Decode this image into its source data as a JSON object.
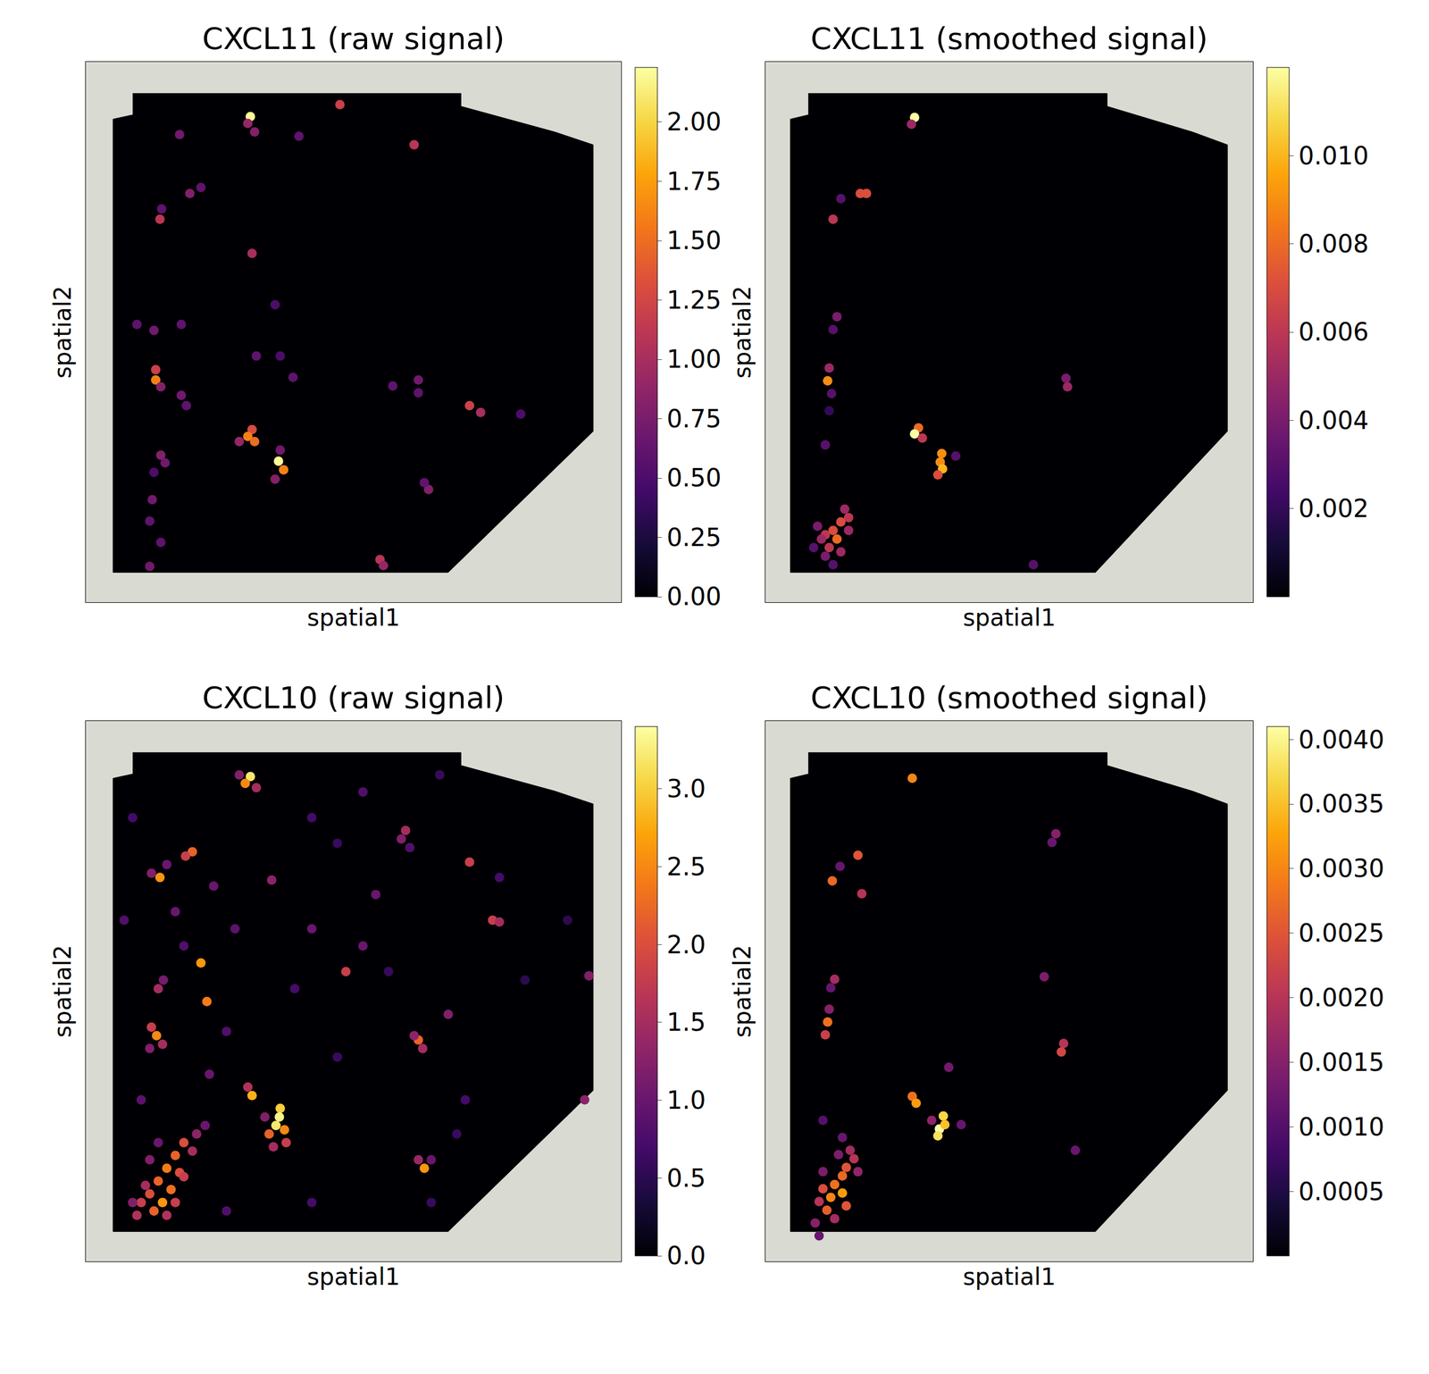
{
  "chart_data": [
    {
      "type": "scatter",
      "title": "CXCL11 (raw signal)",
      "x_label": "spatial1",
      "y_label": "spatial2",
      "xlim": [
        0,
        628
      ],
      "ylim": [
        632,
        0
      ],
      "tick_labels": false,
      "outline": {
        "x": [
          55,
          440,
          440,
          550,
          595,
          595,
          425,
          32,
          32,
          55
        ],
        "y": [
          37,
          37,
          52,
          82,
          97,
          432,
          597,
          597,
          67,
          62
        ]
      },
      "x": [
        193,
        190,
        198,
        298,
        385,
        110,
        250,
        122,
        135,
        87,
        89,
        195,
        222,
        60,
        80,
        112,
        82,
        82,
        88,
        200,
        228,
        243,
        360,
        390,
        390,
        112,
        118,
        450,
        463,
        195,
        190,
        198,
        180,
        228,
        226,
        232,
        222,
        88,
        93,
        80,
        402,
        397,
        78,
        75,
        88,
        75,
        345,
        349,
        510
      ],
      "y": [
        64,
        72,
        82,
        50,
        97,
        85,
        87,
        154,
        147,
        184,
        172,
        224,
        284,
        307,
        314,
        307,
        360,
        372,
        380,
        344,
        344,
        369,
        379,
        372,
        387,
        390,
        402,
        402,
        410,
        430,
        438,
        444,
        444,
        454,
        467,
        477,
        488,
        460,
        469,
        480,
        500,
        492,
        512,
        537,
        562,
        590,
        582,
        589,
        412
      ],
      "values": [
        2.2,
        0.9,
        0.8,
        1.2,
        1.1,
        0.7,
        0.6,
        0.8,
        0.6,
        1.1,
        0.6,
        1.0,
        0.5,
        0.6,
        0.7,
        0.6,
        1.2,
        1.6,
        0.8,
        0.6,
        0.5,
        0.6,
        0.6,
        0.7,
        0.6,
        0.7,
        0.6,
        1.2,
        1.0,
        1.3,
        1.6,
        1.5,
        0.9,
        0.7,
        2.2,
        1.6,
        0.8,
        0.8,
        0.7,
        0.5,
        0.8,
        0.6,
        0.7,
        0.6,
        0.6,
        0.7,
        1.1,
        0.9,
        0.5
      ],
      "colorbar": {
        "range": [
          0,
          2.23
        ],
        "ticks": [
          {
            "value": 0,
            "label": "0.00"
          },
          0.25,
          {
            "value": 0.5,
            "label": "0.50"
          },
          0.75,
          {
            "value": 1,
            "label": "1.00"
          },
          1.25,
          {
            "value": 1.5,
            "label": "1.50"
          },
          1.75,
          {
            "value": 2,
            "label": "2.00"
          }
        ]
      }
    },
    {
      "type": "scatter",
      "title": "CXCL11 (smoothed signal)",
      "x_label": "spatial1",
      "y_label": "spatial2",
      "xlim": [
        0,
        628
      ],
      "ylim": [
        632,
        0
      ],
      "tick_labels": false,
      "outline": {
        "x": [
          55,
          440,
          440,
          550,
          595,
          595,
          425,
          32,
          32,
          55
        ],
        "y": [
          37,
          37,
          52,
          82,
          97,
          432,
          597,
          597,
          67,
          62
        ]
      },
      "x": [
        192,
        188,
        122,
        130,
        87,
        97,
        92,
        87,
        82,
        80,
        85,
        387,
        389,
        197,
        192,
        202,
        227,
        225,
        228,
        222,
        245,
        82,
        77,
        102,
        107,
        97,
        87,
        77,
        92,
        82,
        72,
        97,
        77,
        67,
        107,
        62,
        87,
        345
      ],
      "y": [
        65,
        73,
        154,
        154,
        184,
        160,
        298,
        313,
        358,
        373,
        388,
        370,
        380,
        428,
        435,
        440,
        458,
        468,
        476,
        483,
        461,
        408,
        448,
        523,
        533,
        538,
        548,
        553,
        558,
        568,
        558,
        573,
        578,
        543,
        548,
        568,
        588,
        588
      ],
      "values": [
        0.012,
        0.005,
        0.007,
        0.007,
        0.006,
        0.003,
        0.004,
        0.003,
        0.005,
        0.009,
        0.003,
        0.004,
        0.005,
        0.008,
        0.012,
        0.006,
        0.009,
        0.009,
        0.01,
        0.007,
        0.003,
        0.002,
        0.003,
        0.005,
        0.006,
        0.007,
        0.007,
        0.006,
        0.008,
        0.006,
        0.005,
        0.005,
        0.004,
        0.004,
        0.005,
        0.003,
        0.003,
        0.003
      ],
      "colorbar": {
        "range": [
          0,
          0.012
        ],
        "ticks": [
          0.002,
          0.004,
          0.006,
          0.008,
          {
            "value": 0.01,
            "label": "0.010"
          }
        ]
      }
    },
    {
      "type": "scatter",
      "title": "CXCL10 (raw signal)",
      "x_label": "spatial1",
      "y_label": "spatial2",
      "xlim": [
        0,
        628
      ],
      "ylim": [
        632,
        0
      ],
      "tick_labels": false,
      "outline": {
        "x": [
          55,
          440,
          440,
          550,
          595,
          595,
          425,
          32,
          32,
          55
        ],
        "y": [
          37,
          37,
          52,
          82,
          97,
          432,
          597,
          597,
          67,
          62
        ]
      },
      "x": [
        193,
        187,
        200,
        180,
        125,
        117,
        87,
        77,
        95,
        375,
        370,
        380,
        450,
        477,
        485,
        135,
        85,
        91,
        142,
        218,
        305,
        83,
        77,
        90,
        75,
        390,
        395,
        385,
        195,
        190,
        228,
        227,
        223,
        233,
        215,
        235,
        220,
        210,
        397,
        390,
        405,
        150,
        265,
        325,
        425,
        585,
        590,
        340,
        175,
        45,
        115,
        105,
        115,
        105,
        95,
        110,
        85,
        100,
        75,
        90,
        65,
        80,
        105,
        60,
        95,
        125,
        130,
        115,
        70,
        55,
        140,
        75,
        85,
        265,
        325,
        415,
        295,
        485,
        245,
        355,
        295,
        445,
        515,
        405,
        265,
        165,
        55,
        65,
        145,
        165,
        565,
        435
      ],
      "y": [
        65,
        73,
        78,
        63,
        153,
        158,
        183,
        178,
        168,
        128,
        138,
        148,
        165,
        233,
        235,
        283,
        313,
        303,
        328,
        186,
        293,
        368,
        358,
        378,
        383,
        373,
        383,
        368,
        438,
        428,
        453,
        463,
        473,
        478,
        483,
        493,
        498,
        463,
        523,
        513,
        513,
        193,
        243,
        263,
        343,
        443,
        298,
        203,
        243,
        233,
        263,
        223,
        493,
        508,
        523,
        528,
        538,
        548,
        553,
        563,
        563,
        573,
        563,
        578,
        578,
        503,
        483,
        533,
        543,
        563,
        473,
        513,
        493,
        113,
        83,
        63,
        143,
        183,
        313,
        293,
        393,
        443,
        303,
        563,
        563,
        573,
        113,
        443,
        413,
        363,
        233,
        483
      ],
      "values": [
        3.2,
        2.5,
        1.5,
        1.2,
        2.2,
        1.8,
        2.6,
        1.2,
        1.0,
        1.5,
        1.2,
        0.8,
        1.8,
        1.8,
        1.5,
        2.6,
        1.5,
        1.1,
        2.4,
        1.3,
        1.8,
        2.5,
        1.8,
        1.5,
        1.2,
        2.2,
        1.5,
        1.3,
        2.8,
        1.6,
        3.0,
        3.3,
        3.2,
        2.5,
        2.2,
        1.8,
        1.5,
        1.2,
        2.6,
        1.4,
        1.0,
        1.0,
        1.0,
        1.0,
        1.2,
        1.3,
        1.2,
        1.0,
        0.9,
        0.8,
        0.8,
        1.0,
        2.0,
        2.2,
        2.4,
        2.0,
        2.2,
        2.3,
        2.0,
        2.6,
        1.8,
        2.2,
        1.8,
        1.6,
        1.6,
        1.5,
        1.3,
        1.8,
        1.5,
        1.2,
        1.0,
        1.2,
        1.0,
        0.7,
        0.8,
        0.6,
        0.6,
        0.7,
        0.7,
        0.6,
        0.6,
        0.7,
        0.5,
        0.6,
        0.7,
        0.8,
        0.7,
        0.9,
        1.0,
        0.8,
        0.5,
        0.6
      ],
      "colorbar": {
        "range": [
          0,
          3.4
        ],
        "ticks": [
          {
            "value": 0,
            "label": "0.0"
          },
          0.5,
          {
            "value": 1,
            "label": "1.0"
          },
          1.5,
          {
            "value": 2,
            "label": "2.0"
          },
          2.5,
          {
            "value": 3,
            "label": "3.0"
          }
        ]
      }
    },
    {
      "type": "scatter",
      "title": "CXCL10 (smoothed signal)",
      "x_label": "spatial1",
      "y_label": "spatial2",
      "xlim": [
        0,
        628
      ],
      "ylim": [
        632,
        0
      ],
      "tick_labels": false,
      "outline": {
        "x": [
          55,
          440,
          440,
          550,
          595,
          595,
          425,
          32,
          32,
          55
        ],
        "y": [
          37,
          37,
          52,
          82,
          97,
          432,
          597,
          597,
          67,
          62
        ]
      },
      "x": [
        189,
        374,
        369,
        119,
        124,
        86,
        96,
        89,
        84,
        80,
        77,
        82,
        384,
        381,
        189,
        194,
        229,
        224,
        222,
        231,
        214,
        252,
        236,
        359,
        399,
        109,
        114,
        104,
        99,
        89,
        99,
        84,
        74,
        104,
        79,
        69,
        89,
        64,
        119,
        94,
        74,
        99,
        74,
        69
      ],
      "y": [
        67,
        132,
        142,
        157,
        202,
        187,
        170,
        302,
        312,
        352,
        367,
        337,
        377,
        387,
        439,
        447,
        462,
        477,
        485,
        472,
        467,
        472,
        405,
        299,
        502,
        502,
        512,
        522,
        532,
        542,
        552,
        557,
        547,
        567,
        572,
        562,
        582,
        587,
        527,
        507,
        527,
        487,
        467,
        602
      ],
      "values": [
        0.003,
        0.0015,
        0.0012,
        0.0025,
        0.002,
        0.0027,
        0.0012,
        0.0018,
        0.0012,
        0.0028,
        0.0022,
        0.0015,
        0.002,
        0.0023,
        0.0028,
        0.0032,
        0.0037,
        0.0041,
        0.0038,
        0.0035,
        0.0016,
        0.0012,
        0.0013,
        0.0014,
        0.0012,
        0.0018,
        0.002,
        0.0025,
        0.0027,
        0.0028,
        0.0032,
        0.003,
        0.0024,
        0.0025,
        0.0026,
        0.002,
        0.0018,
        0.0015,
        0.0016,
        0.0014,
        0.0014,
        0.0012,
        0.001,
        0.0012
      ],
      "colorbar": {
        "range": [
          0,
          0.0041
        ],
        "ticks": [
          0.0005,
          {
            "value": 0.001,
            "label": "0.0010"
          },
          0.0015,
          {
            "value": 0.002,
            "label": "0.0020"
          },
          0.0025,
          {
            "value": 0.003,
            "label": "0.0030"
          },
          0.0035,
          {
            "value": 0.004,
            "label": "0.0040"
          }
        ]
      }
    }
  ]
}
